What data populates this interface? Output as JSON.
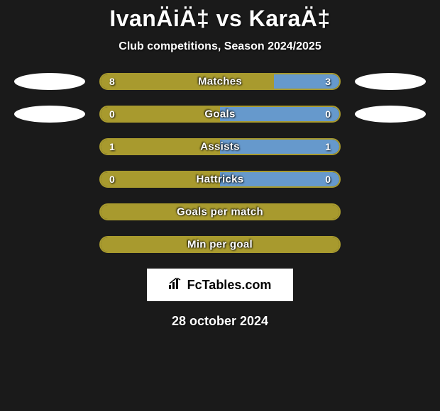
{
  "title": "IvanÄiÄ‡ vs KaraÄ‡",
  "subtitle": "Club competitions, Season 2024/2025",
  "date": "28 october 2024",
  "logo_text": "FcTables.com",
  "colors": {
    "background": "#1a1a1a",
    "left_fill": "#a89a2e",
    "right_fill": "#6699cc",
    "border_olive": "#a89a2e",
    "text": "#ffffff",
    "oval": "#ffffff"
  },
  "stats": [
    {
      "label": "Matches",
      "left_value": "8",
      "right_value": "3",
      "left_pct": 72.7,
      "right_pct": 27.3,
      "show_ovals": true,
      "show_values": true
    },
    {
      "label": "Goals",
      "left_value": "0",
      "right_value": "0",
      "left_pct": 50,
      "right_pct": 50,
      "show_ovals": true,
      "show_values": true
    },
    {
      "label": "Assists",
      "left_value": "1",
      "right_value": "1",
      "left_pct": 50,
      "right_pct": 50,
      "show_ovals": false,
      "show_values": true
    },
    {
      "label": "Hattricks",
      "left_value": "0",
      "right_value": "0",
      "left_pct": 50,
      "right_pct": 50,
      "show_ovals": false,
      "show_values": true
    },
    {
      "label": "Goals per match",
      "left_value": "",
      "right_value": "",
      "left_pct": 100,
      "right_pct": 0,
      "show_ovals": false,
      "show_values": false
    },
    {
      "label": "Min per goal",
      "left_value": "",
      "right_value": "",
      "left_pct": 100,
      "right_pct": 0,
      "show_ovals": false,
      "show_values": false
    }
  ]
}
